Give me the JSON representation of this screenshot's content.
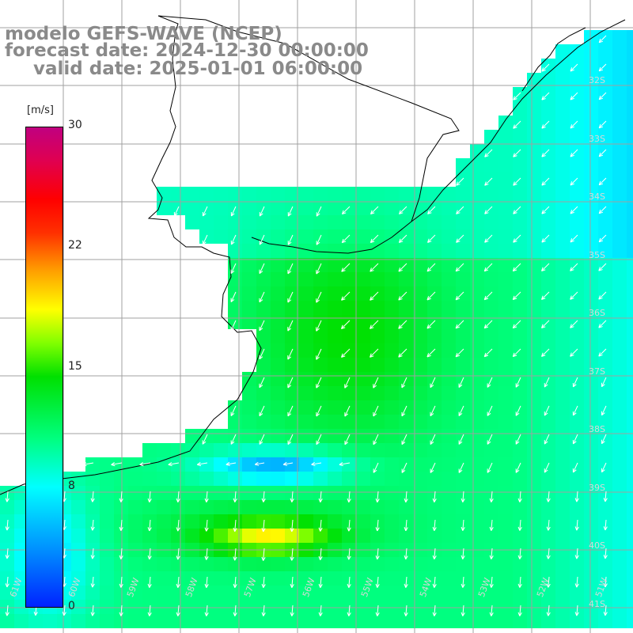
{
  "titles": {
    "line1": "modelo GEFS-WAVE (NCEP)",
    "line2": "forecast date: 2024-12-30 00:00:00",
    "line3": "valid date: 2025-01-01 06:00:00"
  },
  "colorbar": {
    "unit": "[m/s]",
    "min": 0,
    "max": 30,
    "ticks": [
      "30",
      "22",
      "15",
      "8",
      "0"
    ],
    "tick_values": [
      30,
      22,
      15,
      8,
      0
    ],
    "colors": [
      "#0022ff",
      "#0090ff",
      "#00ffff",
      "#00ff80",
      "#00e000",
      "#80ff00",
      "#ffff00",
      "#ffa000",
      "#ff3000",
      "#ff0000",
      "#e00050",
      "#c00080"
    ]
  },
  "map": {
    "lat_labels": [
      "32S",
      "33S",
      "34S",
      "35S",
      "36S",
      "37S",
      "38S",
      "39S",
      "40S",
      "41S"
    ],
    "lon_labels": [
      "61W",
      "60W",
      "59W",
      "58W",
      "57W",
      "56W",
      "55W",
      "54W",
      "53W",
      "52W",
      "51W"
    ],
    "land_color": "#ffffff",
    "grid_color": "#a0a0a0",
    "vector_color": "#ffffff"
  }
}
